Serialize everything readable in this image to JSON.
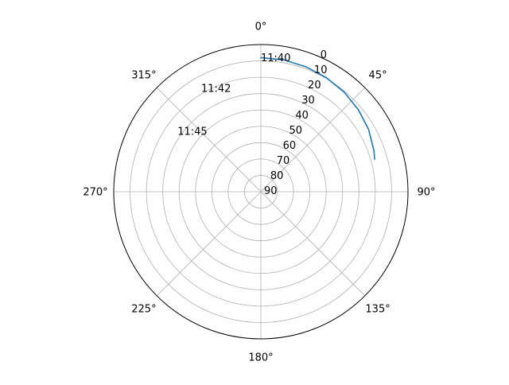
{
  "chart_data": {
    "type": "line",
    "projection": "polar",
    "theta_zero_location": "N",
    "theta_direction": "clockwise",
    "r_axis_inverted": true,
    "rlim": [
      90,
      0
    ],
    "grid": true,
    "angle_ticks": [
      0,
      45,
      90,
      135,
      180,
      225,
      270,
      315
    ],
    "angle_tick_labels": [
      "0°",
      "45°",
      "90°",
      "135°",
      "180°",
      "225°",
      "270°",
      "315°"
    ],
    "radial_ticks": [
      0,
      10,
      20,
      30,
      40,
      50,
      60,
      70,
      80,
      90
    ],
    "radial_tick_labels": [
      "0",
      "10",
      "20",
      "30",
      "40",
      "50",
      "60",
      "70",
      "80",
      "90"
    ],
    "radial_label_angle": 22.5,
    "series": [
      {
        "color": "#1f77b4",
        "azimuth": [
          0,
          10,
          20,
          30,
          40,
          50,
          60,
          70,
          74
        ],
        "altitude": [
          8,
          8.2,
          8.8,
          9.6,
          10.6,
          12.1,
          13.9,
          16.4,
          17.6
        ]
      }
    ],
    "time_annotations": [
      {
        "text": "11:40",
        "azimuth": 0,
        "altitude": 8
      },
      {
        "text": "11:42",
        "azimuth": 330,
        "altitude": 17
      },
      {
        "text": "11:45",
        "azimuth": 306,
        "altitude": 27
      }
    ]
  }
}
